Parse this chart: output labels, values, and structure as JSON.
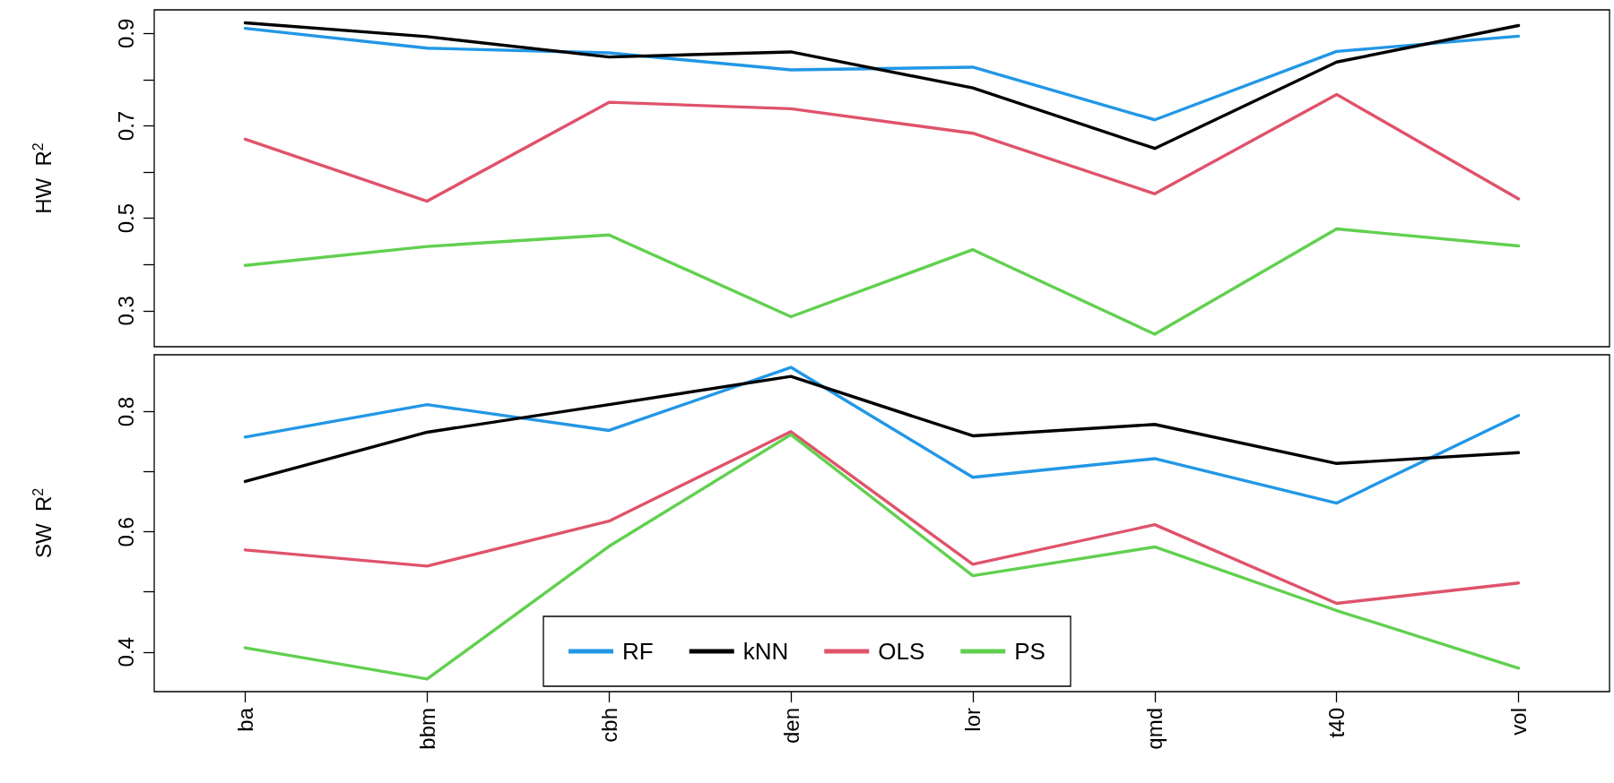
{
  "chart_data": [
    {
      "type": "line",
      "ylabel": "HW  R$^{2}$",
      "categories": [
        null,
        null,
        null,
        null,
        null,
        null,
        null,
        null
      ],
      "series": [
        {
          "color": "#2297e6",
          "values": [
            0.911,
            0.868,
            0.858,
            0.821,
            0.827,
            0.713,
            0.861,
            0.894
          ]
        },
        {
          "color": "#000000",
          "values": [
            0.923,
            0.893,
            0.849,
            0.86,
            0.782,
            0.651,
            0.838,
            0.917
          ]
        },
        {
          "color": "#df536b",
          "values": [
            0.671,
            0.537,
            0.751,
            0.737,
            0.684,
            0.553,
            0.768,
            0.542
          ]
        },
        {
          "color": "#61d04f",
          "values": [
            0.398,
            0.439,
            0.464,
            0.287,
            0.432,
            0.249,
            0.477,
            0.44
          ]
        }
      ],
      "ylim": [
        0.222,
        0.951
      ],
      "yticks": [
        0.3,
        {
          "value": 0.4,
          "label": null
        },
        0.5,
        {
          "value": 0.6,
          "label": null
        },
        0.7,
        {
          "value": 0.8,
          "label": null
        },
        0.9
      ],
      "tick_labels": "y",
      "grid": false,
      "legend": false,
      "marker": "none",
      "line_style": "solid"
    },
    {
      "type": "line",
      "ylabel": "SW  R$^{2}$",
      "categories": [
        "ba",
        "bbm",
        "cbh",
        "den",
        "lor",
        "qmd",
        "t40",
        "vol"
      ],
      "series": [
        {
          "name": "RF",
          "color": "#2297e6",
          "values": [
            0.758,
            0.812,
            0.769,
            0.874,
            0.691,
            0.722,
            0.648,
            0.794
          ]
        },
        {
          "name": "kNN",
          "color": "#000000",
          "values": [
            0.684,
            0.766,
            0.812,
            0.859,
            0.76,
            0.779,
            0.714,
            0.732
          ]
        },
        {
          "name": "OLS",
          "color": "#df536b",
          "values": [
            0.57,
            0.543,
            0.618,
            0.767,
            0.546,
            0.612,
            0.481,
            0.515
          ]
        },
        {
          "name": "PS",
          "color": "#61d04f",
          "values": [
            0.407,
            0.355,
            0.576,
            0.762,
            0.527,
            0.575,
            0.469,
            0.373
          ]
        }
      ],
      "ylim": [
        0.334,
        0.895
      ],
      "yticks": [
        0.4,
        {
          "value": 0.5,
          "label": null
        },
        0.6,
        {
          "value": 0.7,
          "label": null
        },
        0.8
      ],
      "grid": false,
      "legend": "bottom",
      "marker": "none",
      "line_style": "solid"
    }
  ]
}
